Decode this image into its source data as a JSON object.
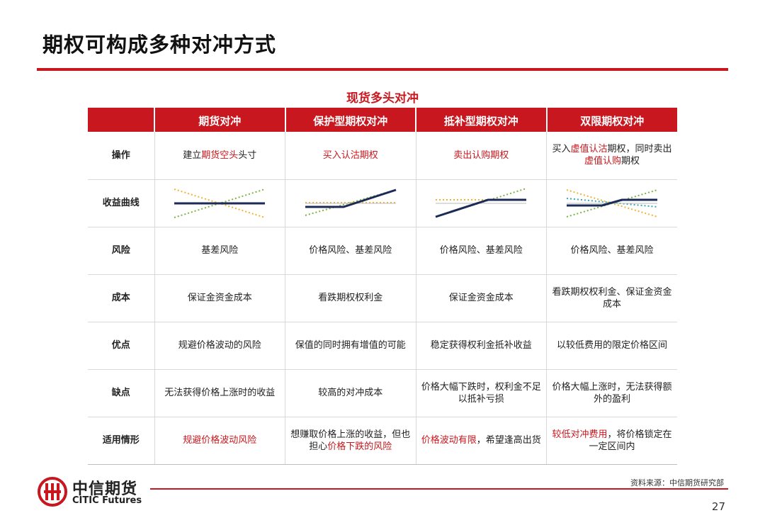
{
  "page": {
    "title": "期权可构成多种对冲方式",
    "table_title": "现货多头对冲",
    "source": "资料来源：中信期货研究部",
    "page_number": "27"
  },
  "logo": {
    "cn": "中信期货",
    "en": "CITIC Futures"
  },
  "colors": {
    "accent": "#c8171e",
    "navy": "#1b2a57",
    "green": "#7cb342",
    "orange": "#f2b233",
    "teal": "#3aa7b5"
  },
  "table": {
    "headers": [
      "",
      "期货对冲",
      "保护型期权对冲",
      "抵补型期权对冲",
      "双限期权对冲"
    ],
    "rows": [
      {
        "label": "操作",
        "cells": [
          [
            {
              "t": "建立"
            },
            {
              "t": "期货空头",
              "r": true
            },
            {
              "t": "头寸"
            }
          ],
          [
            {
              "t": "买入认沽期权",
              "r": true
            }
          ],
          [
            {
              "t": "卖出认购期权",
              "r": true
            }
          ],
          [
            {
              "t": "买入"
            },
            {
              "t": "虚值认沽",
              "r": true
            },
            {
              "t": "期权，同时卖出"
            },
            {
              "br": true
            },
            {
              "t": "虚值认购",
              "r": true
            },
            {
              "t": "期权"
            }
          ]
        ]
      },
      {
        "label": "收益曲线",
        "curves": [
          "futures",
          "protective",
          "covered",
          "collar"
        ]
      },
      {
        "label": "风险",
        "cells": [
          [
            {
              "t": "基差风险"
            }
          ],
          [
            {
              "t": "价格风险、基差风险"
            }
          ],
          [
            {
              "t": "价格风险、基差风险"
            }
          ],
          [
            {
              "t": "价格风险、基差风险"
            }
          ]
        ]
      },
      {
        "label": "成本",
        "cells": [
          [
            {
              "t": "保证金资金成本"
            }
          ],
          [
            {
              "t": "看跌期权权利金"
            }
          ],
          [
            {
              "t": "保证金资金成本"
            }
          ],
          [
            {
              "t": "看跌期权权利金、保证金资金"
            },
            {
              "br": true
            },
            {
              "t": "成本"
            }
          ]
        ]
      },
      {
        "label": "优点",
        "cells": [
          [
            {
              "t": "规避价格波动的风险"
            }
          ],
          [
            {
              "t": "保值的同时拥有增值的可能"
            }
          ],
          [
            {
              "t": "稳定获得权利金抵补收益"
            }
          ],
          [
            {
              "t": "以较低费用的限定价格区间"
            }
          ]
        ]
      },
      {
        "label": "缺点",
        "cells": [
          [
            {
              "t": "无法获得价格上涨时的收益"
            }
          ],
          [
            {
              "t": "较高的对冲成本"
            }
          ],
          [
            {
              "t": "价格大幅下跌时，权利金不足"
            },
            {
              "br": true
            },
            {
              "t": "以抵补亏损"
            }
          ],
          [
            {
              "t": "价格大幅上涨时，无法获得额"
            },
            {
              "br": true
            },
            {
              "t": "外的盈利"
            }
          ]
        ]
      },
      {
        "label": "适用情形",
        "cells": [
          [
            {
              "t": "规避价格波动风险",
              "r": true
            }
          ],
          [
            {
              "t": "想赚取价格上涨的收益，但也"
            },
            {
              "br": true
            },
            {
              "t": "担心"
            },
            {
              "t": "价格下跌的风险",
              "r": true
            }
          ],
          [
            {
              "t": "价格波动有限",
              "r": true
            },
            {
              "t": "，希望逢高出货"
            }
          ],
          [
            {
              "t": "较低对冲费用",
              "r": true
            },
            {
              "t": "，将价格锁定在"
            },
            {
              "br": true
            },
            {
              "t": "一定区间内"
            }
          ]
        ]
      }
    ]
  }
}
